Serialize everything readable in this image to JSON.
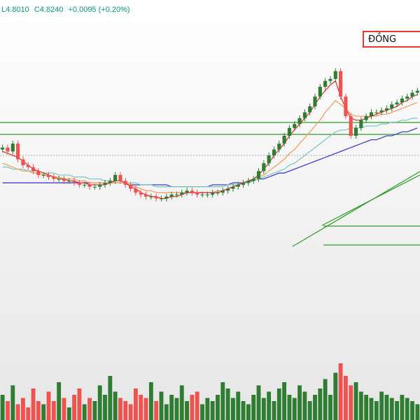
{
  "header": {
    "low_text": "L4.8010",
    "close_text": "C4.8240",
    "change_text": "+0.0095 (+0.20%)"
  },
  "label_box": {
    "text": "ĐỒNG"
  },
  "colors": {
    "up": "#2e7d32",
    "down": "#ef5350",
    "ma_short": "#e53935",
    "ma_mid": "#f4a261",
    "ma_long": "#80cbc4",
    "ma_very_long": "#3f3fcc",
    "lines": "#2e9b2e",
    "header": "#0a9a7b",
    "label_border": "#e53935"
  },
  "chart_data": {
    "type": "candlestick",
    "price_ylim": [
      0,
      100
    ],
    "note_units": "relative price level (no axis printed)",
    "candles_close": [
      64,
      62,
      66,
      58,
      55,
      54,
      52,
      50,
      50,
      49,
      48,
      48,
      47,
      47,
      46,
      45,
      45,
      44,
      44,
      45,
      46,
      47,
      50,
      47,
      45,
      43,
      41,
      40,
      39,
      39,
      38,
      38,
      39,
      40,
      40,
      41,
      42,
      41,
      40,
      40,
      40,
      41,
      41,
      42,
      43,
      44,
      45,
      46,
      47,
      48,
      52,
      56,
      60,
      63,
      66,
      70,
      74,
      76,
      79,
      82,
      85,
      90,
      95,
      98,
      99,
      103,
      90,
      80,
      70,
      74,
      78,
      80,
      82,
      82,
      83,
      84,
      86,
      87,
      89,
      90,
      92,
      93
    ],
    "ma_short": [
      62,
      61,
      60,
      59,
      57,
      55,
      53,
      52,
      51,
      50,
      49,
      48,
      48,
      47,
      47,
      46,
      46,
      45,
      45,
      45,
      45,
      46,
      47,
      47,
      46,
      44,
      43,
      41,
      40,
      39,
      39,
      38,
      38,
      39,
      39,
      40,
      41,
      41,
      41,
      41,
      41,
      41,
      41,
      42,
      43,
      44,
      45,
      46,
      47,
      48,
      50,
      53,
      56,
      60,
      63,
      66,
      70,
      73,
      76,
      79,
      82,
      86,
      90,
      93,
      96,
      98,
      90,
      84,
      79,
      78,
      78,
      79,
      80,
      81,
      82,
      83,
      84,
      85,
      87,
      88,
      90,
      91
    ],
    "ma_mid": [
      56,
      55,
      54,
      53,
      52,
      52,
      51,
      51,
      50,
      50,
      49,
      49,
      48,
      48,
      48,
      47,
      47,
      46,
      46,
      46,
      46,
      46,
      46,
      46,
      46,
      45,
      44,
      43,
      42,
      42,
      41,
      41,
      41,
      41,
      41,
      41,
      41,
      41,
      41,
      41,
      41,
      41,
      42,
      42,
      43,
      44,
      45,
      46,
      47,
      48,
      49,
      50,
      52,
      54,
      56,
      58,
      61,
      63,
      66,
      69,
      72,
      75,
      78,
      82,
      85,
      88,
      86,
      84,
      81,
      80,
      80,
      80,
      80,
      80,
      81,
      81,
      82,
      83,
      84,
      85,
      86,
      87
    ],
    "ma_long": [
      54,
      54,
      53,
      53,
      53,
      52,
      52,
      52,
      51,
      51,
      51,
      50,
      50,
      50,
      49,
      49,
      49,
      48,
      48,
      48,
      47,
      47,
      47,
      47,
      46,
      46,
      46,
      45,
      45,
      45,
      44,
      44,
      44,
      44,
      44,
      44,
      44,
      44,
      44,
      44,
      44,
      44,
      44,
      44,
      45,
      45,
      45,
      46,
      46,
      47,
      48,
      49,
      50,
      51,
      52,
      53,
      55,
      56,
      58,
      60,
      62,
      64,
      66,
      68,
      70,
      72,
      73,
      73,
      74,
      74,
      74,
      75,
      75,
      75,
      76,
      76,
      77,
      77,
      78,
      78,
      79,
      79
    ],
    "ma_very_long": [
      46,
      46,
      46,
      46,
      46,
      46,
      46,
      46,
      46,
      46,
      46,
      46,
      46,
      46,
      46,
      46,
      46,
      46,
      46,
      46,
      46,
      46,
      46,
      46,
      46,
      45,
      45,
      45,
      45,
      45,
      45,
      45,
      45,
      44,
      44,
      44,
      44,
      44,
      44,
      44,
      44,
      45,
      45,
      45,
      45,
      46,
      46,
      46,
      47,
      47,
      48,
      48,
      49,
      50,
      51,
      51,
      52,
      53,
      54,
      55,
      56,
      57,
      58,
      59,
      60,
      61,
      62,
      63,
      64,
      65,
      66,
      67,
      68,
      68,
      69,
      70,
      70,
      71,
      72,
      72,
      73,
      74
    ],
    "volume_ylim": [
      0,
      100
    ],
    "volumes": [
      40,
      30,
      55,
      25,
      35,
      20,
      50,
      30,
      25,
      45,
      30,
      60,
      35,
      20,
      40,
      50,
      25,
      35,
      30,
      55,
      40,
      70,
      45,
      35,
      30,
      25,
      50,
      40,
      35,
      60,
      30,
      45,
      25,
      40,
      35,
      55,
      30,
      40,
      45,
      25,
      35,
      30,
      40,
      60,
      50,
      35,
      45,
      30,
      25,
      40,
      55,
      35,
      45,
      30,
      50,
      60,
      40,
      35,
      55,
      45,
      30,
      40,
      50,
      65,
      40,
      75,
      90,
      70,
      55,
      60,
      45,
      40,
      35,
      30,
      45,
      40,
      35,
      30,
      40,
      35,
      30,
      25
    ]
  }
}
